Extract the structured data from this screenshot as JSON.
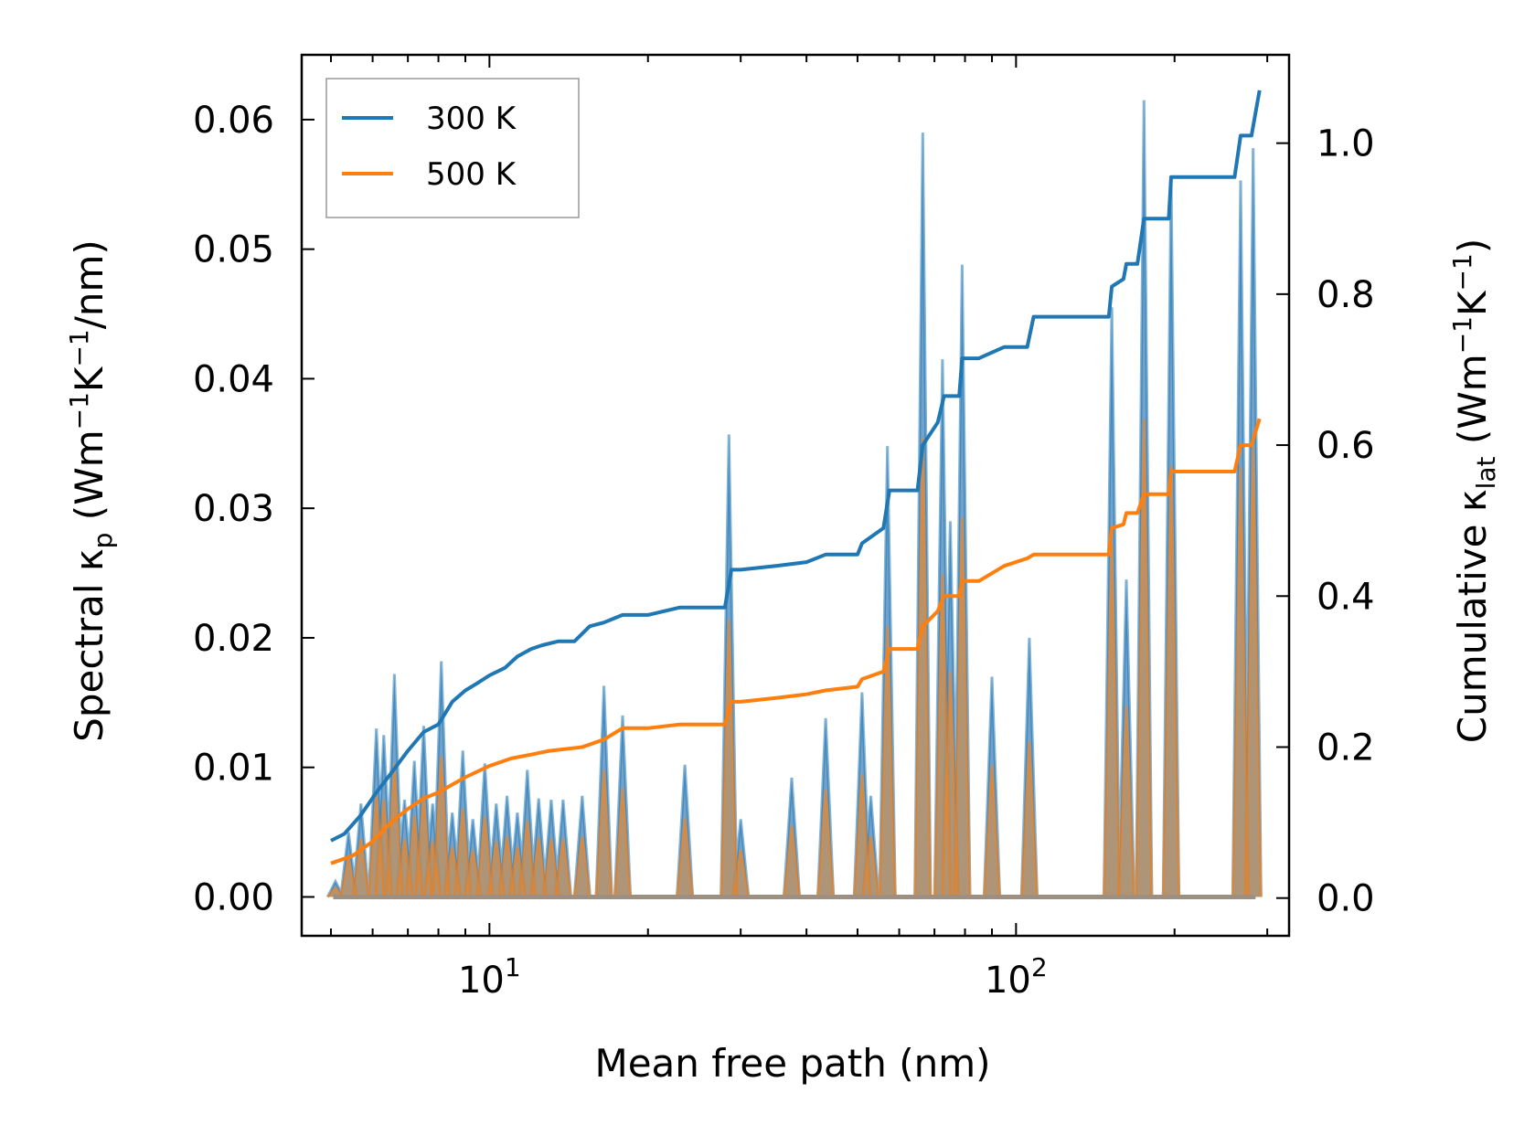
{
  "chart_data": {
    "type": "line",
    "xscale": "log",
    "xlim": [
      4.4,
      330
    ],
    "ylim_left": [
      -0.003,
      0.065
    ],
    "ylim_right": [
      -0.05,
      1.117
    ],
    "xlabel": "Mean free path (nm)",
    "ylabel_left": {
      "prefix": "Spectral κ",
      "sub": "p",
      "unit_open": " (Wm",
      "sup1": "−1",
      "mid": "K",
      "sup2": "−1",
      "tail": "/nm)"
    },
    "ylabel_right": {
      "prefix": "Cumulative κ",
      "sub": "lat",
      "unit_open": " (Wm",
      "sup1": "−1",
      "mid": "K",
      "sup2": "−1",
      "tail": ")"
    },
    "x_ticks": [
      {
        "value": 10,
        "base": "10",
        "exp": "1"
      },
      {
        "value": 100,
        "base": "10",
        "exp": "2"
      }
    ],
    "y_left_ticks": [
      "0.00",
      "0.01",
      "0.02",
      "0.03",
      "0.04",
      "0.05",
      "0.06"
    ],
    "y_left_tick_values": [
      0,
      0.01,
      0.02,
      0.03,
      0.04,
      0.05,
      0.06
    ],
    "y_right_ticks": [
      "0.0",
      "0.2",
      "0.4",
      "0.6",
      "0.8",
      "1.0"
    ],
    "y_right_tick_values": [
      0,
      0.2,
      0.4,
      0.6,
      0.8,
      1.0
    ],
    "legend": {
      "placement": "top-left",
      "entries": [
        "300 K",
        "500 K"
      ]
    },
    "colors": {
      "series_300": "#1f77b4",
      "series_500": "#ff7f0e",
      "spec_300_fill": "#5b93c2",
      "spec_500_fill": "#c2905b"
    },
    "spectral": {
      "series": [
        {
          "name": "300 K",
          "peaks": [
            [
              5.1,
              0.0012
            ],
            [
              5.4,
              0.005
            ],
            [
              5.7,
              0.0072
            ],
            [
              6.1,
              0.013
            ],
            [
              6.3,
              0.0125
            ],
            [
              6.6,
              0.0172
            ],
            [
              6.9,
              0.0075
            ],
            [
              7.2,
              0.0105
            ],
            [
              7.5,
              0.0132
            ],
            [
              7.8,
              0.0072
            ],
            [
              8.1,
              0.0182
            ],
            [
              8.5,
              0.0065
            ],
            [
              8.9,
              0.0113
            ],
            [
              9.3,
              0.006
            ],
            [
              9.8,
              0.0103
            ],
            [
              10.3,
              0.0072
            ],
            [
              10.8,
              0.0078
            ],
            [
              11.3,
              0.0065
            ],
            [
              11.8,
              0.0098
            ],
            [
              12.4,
              0.0076
            ],
            [
              13.1,
              0.0075
            ],
            [
              13.8,
              0.0075
            ],
            [
              15.0,
              0.0078
            ],
            [
              16.5,
              0.0163
            ],
            [
              17.9,
              0.014
            ],
            [
              23.5,
              0.0102
            ],
            [
              28.5,
              0.0357
            ],
            [
              30.0,
              0.006
            ],
            [
              37.5,
              0.0092
            ],
            [
              43.5,
              0.0138
            ],
            [
              51.0,
              0.0158
            ],
            [
              53.0,
              0.0078
            ],
            [
              57.0,
              0.0348
            ],
            [
              66.5,
              0.059
            ],
            [
              72.5,
              0.0415
            ],
            [
              75.0,
              0.029
            ],
            [
              79.0,
              0.0488
            ],
            [
              90.0,
              0.017
            ],
            [
              106.0,
              0.02
            ],
            [
              152.0,
              0.0455
            ],
            [
              162.0,
              0.0245
            ],
            [
              175.0,
              0.0615
            ],
            [
              197.0,
              0.0555
            ],
            [
              267.0,
              0.0553
            ],
            [
              282.0,
              0.0578
            ]
          ]
        },
        {
          "name": "500 K",
          "peaks": [
            [
              5.1,
              0.0007
            ],
            [
              5.4,
              0.003
            ],
            [
              5.7,
              0.0045
            ],
            [
              6.1,
              0.0078
            ],
            [
              6.3,
              0.0075
            ],
            [
              6.6,
              0.0103
            ],
            [
              6.9,
              0.0045
            ],
            [
              7.2,
              0.0063
            ],
            [
              7.5,
              0.0079
            ],
            [
              7.8,
              0.0043
            ],
            [
              8.1,
              0.0109
            ],
            [
              8.5,
              0.0039
            ],
            [
              8.9,
              0.0068
            ],
            [
              9.3,
              0.0036
            ],
            [
              9.8,
              0.0062
            ],
            [
              10.3,
              0.0043
            ],
            [
              10.8,
              0.0047
            ],
            [
              11.3,
              0.0039
            ],
            [
              11.8,
              0.0059
            ],
            [
              12.4,
              0.0046
            ],
            [
              13.1,
              0.0045
            ],
            [
              13.8,
              0.0045
            ],
            [
              15.0,
              0.0047
            ],
            [
              16.5,
              0.0098
            ],
            [
              17.9,
              0.0084
            ],
            [
              23.5,
              0.0061
            ],
            [
              28.5,
              0.0214
            ],
            [
              30.0,
              0.0036
            ],
            [
              37.5,
              0.0055
            ],
            [
              43.5,
              0.0083
            ],
            [
              51.0,
              0.0095
            ],
            [
              53.0,
              0.0047
            ],
            [
              57.0,
              0.0209
            ],
            [
              66.5,
              0.0354
            ],
            [
              72.5,
              0.0249
            ],
            [
              75.0,
              0.0174
            ],
            [
              79.0,
              0.0293
            ],
            [
              90.0,
              0.0102
            ],
            [
              106.0,
              0.012
            ],
            [
              152.0,
              0.0273
            ],
            [
              162.0,
              0.0147
            ],
            [
              175.0,
              0.0369
            ],
            [
              197.0,
              0.0333
            ],
            [
              267.0,
              0.0332
            ],
            [
              282.0,
              0.0347
            ]
          ]
        }
      ]
    },
    "cumulative": {
      "series": [
        {
          "name": "300 K",
          "x": [
            5.0,
            5.3,
            5.7,
            6.1,
            6.5,
            7.0,
            7.5,
            8.0,
            8.5,
            9.0,
            9.5,
            10.0,
            10.7,
            11.3,
            12.0,
            12.6,
            13.5,
            14.5,
            15.5,
            16.5,
            17.9,
            18.5,
            20.0,
            23.0,
            28.0,
            28.8,
            30.0,
            35.0,
            40.0,
            43.5,
            50.0,
            51.0,
            56.0,
            57.5,
            65.0,
            66.5,
            71.0,
            73.0,
            78.0,
            79.0,
            85.0,
            95.0,
            105.0,
            108.0,
            150.0,
            152.0,
            160.0,
            162.0,
            170.0,
            175.0,
            195.0,
            197.0,
            260.0,
            267.0,
            280.0,
            290.0
          ],
          "y": [
            0.076,
            0.085,
            0.11,
            0.14,
            0.165,
            0.195,
            0.22,
            0.23,
            0.26,
            0.275,
            0.285,
            0.295,
            0.305,
            0.32,
            0.33,
            0.335,
            0.34,
            0.34,
            0.36,
            0.365,
            0.375,
            0.375,
            0.375,
            0.385,
            0.385,
            0.435,
            0.435,
            0.44,
            0.445,
            0.455,
            0.455,
            0.47,
            0.49,
            0.54,
            0.54,
            0.6,
            0.63,
            0.665,
            0.665,
            0.715,
            0.715,
            0.73,
            0.73,
            0.77,
            0.77,
            0.81,
            0.82,
            0.84,
            0.84,
            0.9,
            0.9,
            0.955,
            0.955,
            1.01,
            1.01,
            1.07
          ]
        },
        {
          "name": "500 K",
          "x": [
            5.0,
            5.5,
            6.0,
            6.5,
            7.0,
            7.5,
            8.0,
            9.0,
            10.0,
            11.0,
            12.0,
            13.0,
            15.0,
            16.5,
            17.9,
            18.5,
            20.0,
            23.0,
            28.0,
            28.8,
            30.0,
            35.0,
            40.0,
            43.5,
            50.0,
            51.0,
            56.0,
            57.5,
            65.0,
            66.5,
            71.0,
            73.0,
            78.0,
            79.0,
            85.0,
            95.0,
            105.0,
            108.0,
            150.0,
            152.0,
            160.0,
            162.0,
            170.0,
            175.0,
            195.0,
            197.0,
            260.0,
            267.0,
            280.0,
            290.0
          ],
          "y": [
            0.046,
            0.056,
            0.075,
            0.1,
            0.118,
            0.132,
            0.14,
            0.16,
            0.175,
            0.185,
            0.19,
            0.195,
            0.2,
            0.21,
            0.225,
            0.225,
            0.225,
            0.23,
            0.23,
            0.26,
            0.26,
            0.265,
            0.27,
            0.275,
            0.28,
            0.29,
            0.3,
            0.33,
            0.33,
            0.36,
            0.38,
            0.4,
            0.4,
            0.42,
            0.42,
            0.44,
            0.45,
            0.455,
            0.455,
            0.49,
            0.495,
            0.51,
            0.51,
            0.535,
            0.535,
            0.565,
            0.565,
            0.6,
            0.6,
            0.635
          ]
        }
      ]
    }
  }
}
